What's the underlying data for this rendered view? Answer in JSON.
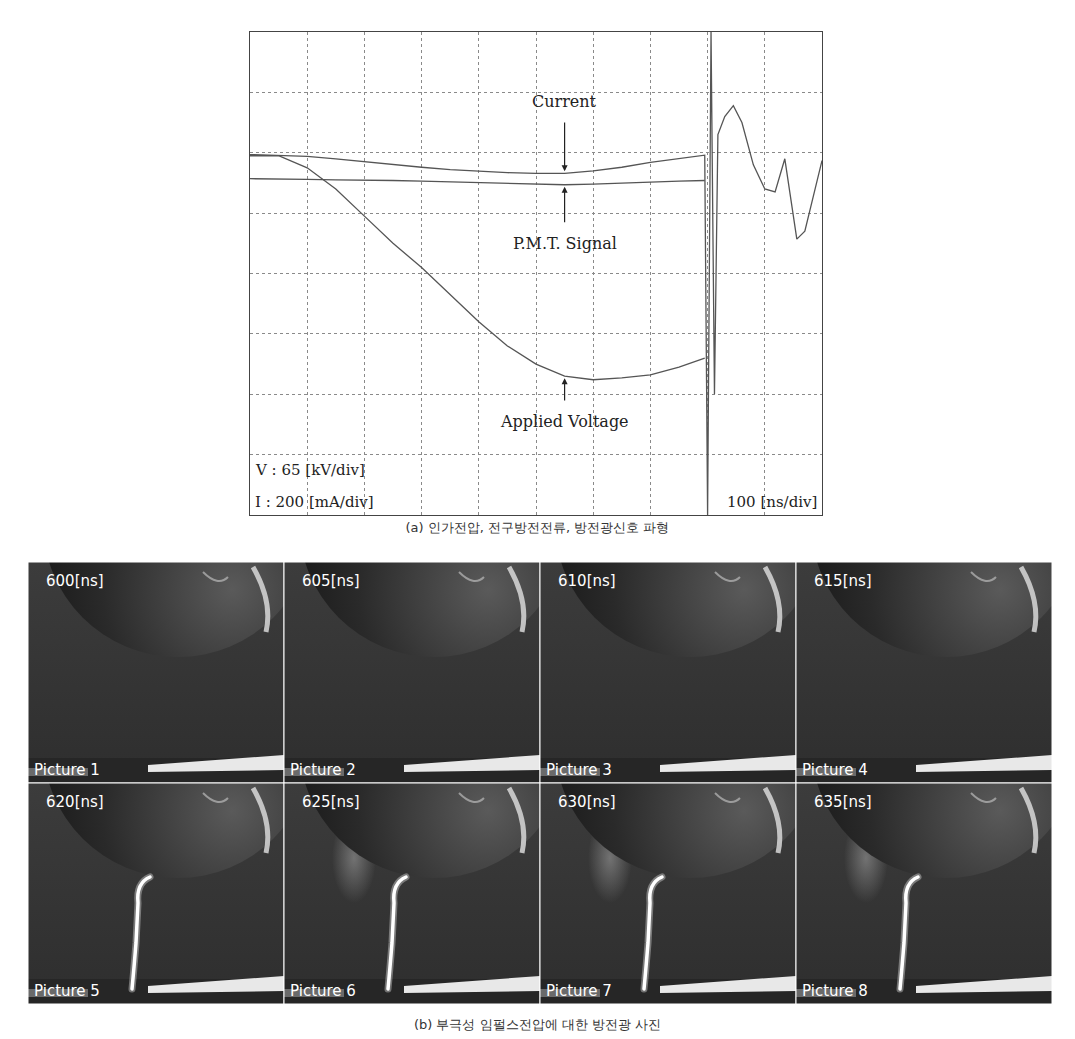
{
  "chart_data": {
    "type": "line",
    "x": [
      0,
      50,
      100,
      150,
      200,
      250,
      300,
      350,
      400,
      450,
      500,
      550,
      600,
      650,
      700,
      750,
      795,
      800,
      806,
      812,
      818,
      830,
      845,
      860,
      880,
      900,
      918,
      935,
      950,
      956,
      970,
      985,
      1000
    ],
    "series": [
      {
        "name": "Current",
        "color": "#555555",
        "values": [
          1.97,
          1.96,
          1.94,
          1.9,
          1.85,
          1.8,
          1.76,
          1.72,
          1.69,
          1.67,
          1.66,
          1.66,
          1.7,
          1.76,
          1.84,
          1.9,
          1.96,
          -4.0,
          4.0,
          -2.0,
          2.3,
          2.6,
          2.78,
          2.5,
          1.8,
          1.4,
          1.35,
          1.9,
          0.9,
          0.57,
          0.7,
          1.3,
          1.87
        ]
      },
      {
        "name": "P.M.T. Signal",
        "color": "#555555",
        "values": [
          1.57,
          1.57,
          1.56,
          1.55,
          1.55,
          1.54,
          1.53,
          1.52,
          1.5,
          1.49,
          1.48,
          1.47,
          1.48,
          1.5,
          1.52,
          1.53,
          1.54,
          null,
          null,
          null,
          null,
          null,
          null,
          null,
          null,
          null,
          null,
          null,
          null,
          null,
          null,
          null,
          null
        ]
      },
      {
        "name": "Applied Voltage",
        "color": "#555555",
        "values": [
          1.95,
          1.95,
          1.75,
          1.4,
          0.95,
          0.5,
          0.1,
          -0.35,
          -0.8,
          -1.2,
          -1.5,
          -1.7,
          -1.76,
          -1.73,
          -1.68,
          -1.55,
          -1.4,
          null,
          null,
          null,
          null,
          null,
          null,
          null,
          null,
          null,
          null,
          null,
          null,
          null,
          null,
          null,
          null
        ]
      }
    ],
    "xlim": [
      0,
      1000
    ],
    "xticks": [
      0,
      100,
      200,
      300,
      400,
      500,
      600,
      700,
      800,
      900,
      1000
    ],
    "ylim": [
      -4,
      4
    ],
    "yticks": [
      -4,
      -3,
      -2,
      -1,
      0,
      1,
      2,
      3,
      4
    ],
    "grid": true,
    "tick_labels": false,
    "annotations": [
      {
        "text": "Current",
        "x": 550,
        "y": 1.66,
        "text_y": 2.85
      },
      {
        "text": "P.M.T. Signal",
        "x": 550,
        "y": 1.47,
        "text_y": 0.5
      },
      {
        "text": "Applied Voltage",
        "x": 550,
        "y": -1.7,
        "text_y": -2.45
      }
    ],
    "scale_labels": [
      "V : 65 [kV/div]",
      "I : 200 [mA/div]",
      "100 [ns/div]"
    ]
  },
  "captions": {
    "a": "(a) 인가전압, 전구방전전류, 방전광신호 파형",
    "b": "(b) 부극성 임펄스전압에 대한 방전광 사진"
  },
  "photos": [
    {
      "time": "600[ns]",
      "label": "Picture 1",
      "channel": false
    },
    {
      "time": "605[ns]",
      "label": "Picture 2",
      "channel": false
    },
    {
      "time": "610[ns]",
      "label": "Picture 3",
      "channel": false
    },
    {
      "time": "615[ns]",
      "label": "Picture 4",
      "channel": false
    },
    {
      "time": "620[ns]",
      "label": "Picture 5",
      "channel": true
    },
    {
      "time": "625[ns]",
      "label": "Picture 6",
      "channel": true
    },
    {
      "time": "630[ns]",
      "label": "Picture 7",
      "channel": true
    },
    {
      "time": "635[ns]",
      "label": "Picture 8",
      "channel": true
    }
  ]
}
